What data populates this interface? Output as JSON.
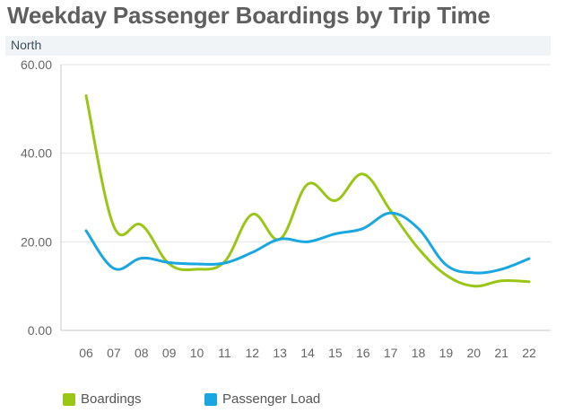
{
  "header": {
    "title": "Weekday Passenger Boardings by Trip Time",
    "subtitle": "North"
  },
  "colors": {
    "boardings": "#99c617",
    "passenger_load": "#1aa6e0",
    "grid": "#e6e6e6",
    "axis": "#c8c8c8"
  },
  "chart_data": {
    "type": "line",
    "title": "Weekday Passenger Boardings by Trip Time",
    "subtitle": "North",
    "xlabel": "",
    "ylabel": "",
    "categories": [
      "06",
      "07",
      "08",
      "09",
      "10",
      "11",
      "12",
      "13",
      "14",
      "15",
      "16",
      "17",
      "18",
      "19",
      "20",
      "21",
      "22"
    ],
    "ylim": [
      0,
      60
    ],
    "yticks": [
      "0.00",
      "20.00",
      "40.00",
      "60.00"
    ],
    "grid": true,
    "legend_position": "bottom-left",
    "series": [
      {
        "name": "Boardings",
        "values": [
          53.0,
          23.5,
          23.8,
          15.0,
          13.8,
          15.5,
          26.2,
          20.6,
          33.0,
          29.3,
          35.3,
          27.0,
          18.5,
          12.5,
          10.0,
          11.2,
          11.0
        ]
      },
      {
        "name": "Passenger Load",
        "values": [
          22.5,
          14.0,
          16.3,
          15.3,
          15.0,
          15.2,
          17.6,
          20.6,
          20.0,
          21.8,
          23.0,
          26.5,
          23.0,
          14.8,
          13.0,
          13.8,
          16.2
        ]
      }
    ]
  }
}
